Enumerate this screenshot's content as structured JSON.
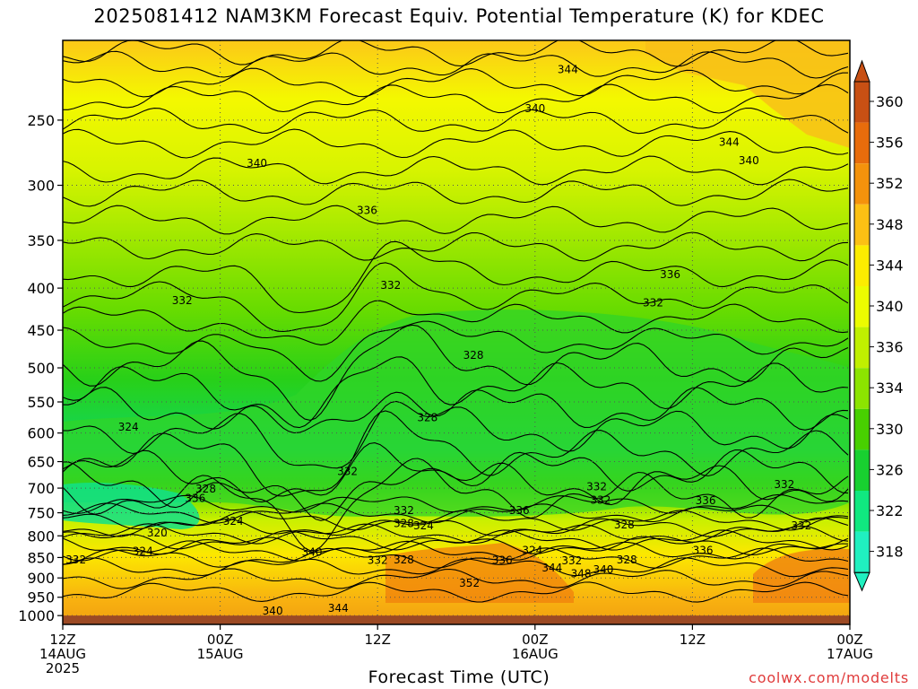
{
  "chart_data": {
    "type": "heatmap",
    "title": "2025081412 NAM3KM Forecast Equiv. Potential Temperature (K) for KDEC",
    "xlabel": "Forecast Time (UTC)",
    "ylabel": "",
    "x_ticks": [
      {
        "hour": 0,
        "lines": [
          "12Z",
          "14AUG",
          "2025"
        ]
      },
      {
        "hour": 12,
        "lines": [
          "00Z",
          "15AUG"
        ]
      },
      {
        "hour": 24,
        "lines": [
          "12Z"
        ]
      },
      {
        "hour": 36,
        "lines": [
          "00Z",
          "16AUG"
        ]
      },
      {
        "hour": 48,
        "lines": [
          "12Z"
        ]
      },
      {
        "hour": 60,
        "lines": [
          "00Z",
          "17AUG"
        ]
      }
    ],
    "xlim": [
      0,
      60
    ],
    "y_ticks": [
      250,
      300,
      350,
      400,
      450,
      500,
      550,
      600,
      650,
      700,
      750,
      800,
      850,
      900,
      950,
      1000
    ],
    "ylim": [
      1025,
      200
    ],
    "y_scale": "log",
    "grid": true,
    "colorbar": {
      "labels": [
        360,
        356,
        352,
        348,
        344,
        340,
        336,
        334,
        330,
        326,
        322,
        318
      ],
      "colors": [
        "#c85014",
        "#e86c0c",
        "#f4920c",
        "#fcc014",
        "#fcec00",
        "#ecfc00",
        "#c0f000",
        "#8ce400",
        "#48d000",
        "#18d030",
        "#10e880",
        "#20f0c0"
      ]
    },
    "contour_labels": [
      {
        "hour": 38.5,
        "p": 217,
        "text": "344"
      },
      {
        "hour": 36.0,
        "p": 242,
        "text": "340"
      },
      {
        "hour": 14.8,
        "p": 282,
        "text": "340"
      },
      {
        "hour": 50.8,
        "p": 266,
        "text": "344"
      },
      {
        "hour": 52.3,
        "p": 280,
        "text": "340"
      },
      {
        "hour": 23.2,
        "p": 322,
        "text": "336"
      },
      {
        "hour": 46.3,
        "p": 385,
        "text": "336"
      },
      {
        "hour": 9.1,
        "p": 414,
        "text": "332"
      },
      {
        "hour": 25.0,
        "p": 397,
        "text": "332"
      },
      {
        "hour": 45.0,
        "p": 417,
        "text": "332"
      },
      {
        "hour": 31.3,
        "p": 483,
        "text": "328"
      },
      {
        "hour": 5.0,
        "p": 590,
        "text": "324"
      },
      {
        "hour": 27.8,
        "p": 575,
        "text": "328"
      },
      {
        "hour": 21.7,
        "p": 668,
        "text": "332"
      },
      {
        "hour": 10.9,
        "p": 702,
        "text": "328"
      },
      {
        "hour": 10.1,
        "p": 720,
        "text": "336"
      },
      {
        "hour": 40.7,
        "p": 697,
        "text": "332"
      },
      {
        "hour": 55.0,
        "p": 693,
        "text": "332"
      },
      {
        "hour": 49.0,
        "p": 725,
        "text": "336"
      },
      {
        "hour": 26.0,
        "p": 745,
        "text": "332"
      },
      {
        "hour": 34.8,
        "p": 745,
        "text": "336"
      },
      {
        "hour": 41.0,
        "p": 724,
        "text": "332"
      },
      {
        "hour": 13.0,
        "p": 768,
        "text": "324"
      },
      {
        "hour": 26.0,
        "p": 773,
        "text": "328"
      },
      {
        "hour": 27.5,
        "p": 778,
        "text": "324"
      },
      {
        "hour": 42.8,
        "p": 776,
        "text": "328"
      },
      {
        "hour": 56.3,
        "p": 778,
        "text": "332"
      },
      {
        "hour": 7.2,
        "p": 793,
        "text": "320"
      },
      {
        "hour": 6.1,
        "p": 835,
        "text": "324"
      },
      {
        "hour": 1.0,
        "p": 856,
        "text": "332"
      },
      {
        "hour": 19.0,
        "p": 837,
        "text": "340"
      },
      {
        "hour": 24.0,
        "p": 857,
        "text": "332"
      },
      {
        "hour": 26.0,
        "p": 855,
        "text": "328"
      },
      {
        "hour": 33.5,
        "p": 857,
        "text": "336"
      },
      {
        "hour": 35.8,
        "p": 833,
        "text": "324"
      },
      {
        "hour": 38.8,
        "p": 858,
        "text": "332"
      },
      {
        "hour": 43.0,
        "p": 856,
        "text": "328"
      },
      {
        "hour": 48.8,
        "p": 833,
        "text": "336"
      },
      {
        "hour": 37.3,
        "p": 875,
        "text": "344"
      },
      {
        "hour": 39.5,
        "p": 890,
        "text": "348"
      },
      {
        "hour": 41.2,
        "p": 880,
        "text": "340"
      },
      {
        "hour": 31.0,
        "p": 913,
        "text": "352"
      },
      {
        "hour": 16.0,
        "p": 987,
        "text": "340"
      },
      {
        "hour": 21.0,
        "p": 980,
        "text": "344"
      }
    ]
  },
  "credit": "coolwx.com/modelts"
}
